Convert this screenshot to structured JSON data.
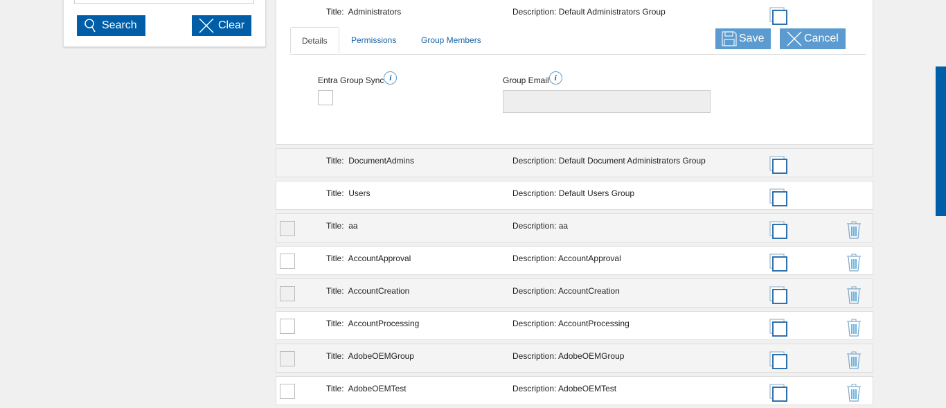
{
  "sidebar": {
    "search_label": "Search",
    "clear_label": "Clear"
  },
  "expanded": {
    "title_label": "Title:",
    "title": "Administrators",
    "description_label": "Description:",
    "description": "Default Administrators Group",
    "tabs": [
      {
        "label": "Details"
      },
      {
        "label": "Permissions"
      },
      {
        "label": "Group Members"
      }
    ],
    "save_label": "Save",
    "cancel_label": "Cancel",
    "entra_sync_label": "Entra Group Sync",
    "group_email_label": "Group Email",
    "group_email_value": ""
  },
  "rows": [
    {
      "title": "DocumentAdmins",
      "description": "Default Document Administrators Group",
      "deletable": false
    },
    {
      "title": "Users",
      "description": "Default Users Group",
      "deletable": false
    },
    {
      "title": "aa",
      "description": "aa",
      "deletable": true
    },
    {
      "title": "AccountApproval",
      "description": "AccountApproval",
      "deletable": true
    },
    {
      "title": "AccountCreation",
      "description": "AccountCreation",
      "deletable": true
    },
    {
      "title": "AccountProcessing",
      "description": "AccountProcessing",
      "deletable": true
    },
    {
      "title": "AdobeOEMGroup",
      "description": "AdobeOEMGroup",
      "deletable": true
    },
    {
      "title": "AdobeOEMTest",
      "description": "AdobeOEMTest",
      "deletable": true
    }
  ],
  "labels": {
    "title": "Title:",
    "description": "Description:"
  },
  "colors": {
    "primary": "#005ea8",
    "primary_light": "#5b9bd0",
    "page_bg": "#f0f0f0"
  }
}
